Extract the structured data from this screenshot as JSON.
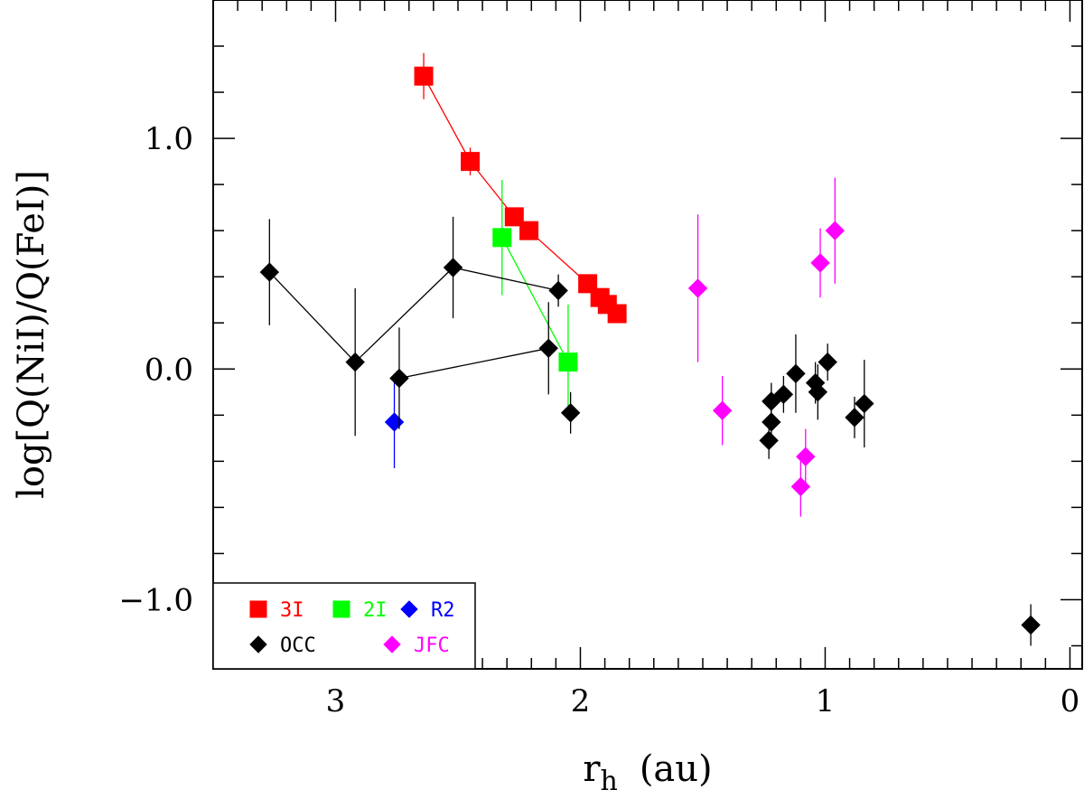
{
  "chart_data": {
    "type": "scatter",
    "xlabel": "r",
    "xlabel_sub": "h",
    "xlabel_unit": "(au)",
    "ylabel": "log[Q(NiI)/Q(FeI)]",
    "xlim": [
      3.5,
      -0.05
    ],
    "ylim": [
      -1.3,
      1.6
    ],
    "x_ticks": [
      3,
      2,
      1,
      0
    ],
    "x_tick_labels": [
      "3",
      "2",
      "1",
      "0"
    ],
    "y_ticks": [
      1.0,
      0.0,
      -1.0
    ],
    "y_tick_labels": [
      "1.0",
      "0.0",
      "−1.0"
    ],
    "legend_position": "bottom-left",
    "series": [
      {
        "name": "3I",
        "color": "#ff0000",
        "marker": "square",
        "connected": true,
        "points": [
          {
            "x": 2.64,
            "y": 1.27,
            "err": 0.1
          },
          {
            "x": 2.45,
            "y": 0.9,
            "err": 0.06
          },
          {
            "x": 2.27,
            "y": 0.66,
            "err": 0.04
          },
          {
            "x": 2.21,
            "y": 0.6,
            "err": 0.04
          },
          {
            "x": 1.97,
            "y": 0.37,
            "err": 0.04
          },
          {
            "x": 1.92,
            "y": 0.31,
            "err": 0.04
          },
          {
            "x": 1.89,
            "y": 0.28,
            "err": 0.04
          },
          {
            "x": 1.85,
            "y": 0.24,
            "err": 0.04
          }
        ]
      },
      {
        "name": "2I",
        "color": "#00ff00",
        "marker": "square",
        "connected": true,
        "points": [
          {
            "x": 2.32,
            "y": 0.57,
            "err": 0.25
          },
          {
            "x": 2.05,
            "y": 0.03,
            "err": 0.25
          }
        ]
      },
      {
        "name": "R2",
        "color": "#0000ff",
        "marker": "diamond",
        "connected": false,
        "points": [
          {
            "x": 2.76,
            "y": -0.23,
            "err": 0.2
          }
        ]
      },
      {
        "name": "OCC",
        "color": "#000000",
        "marker": "diamond",
        "connected": false,
        "lines": [
          [
            0,
            1,
            2,
            3
          ],
          [
            4,
            5
          ]
        ],
        "points": [
          {
            "x": 3.27,
            "y": 0.42,
            "err": 0.23
          },
          {
            "x": 2.92,
            "y": 0.03,
            "err": 0.32
          },
          {
            "x": 2.52,
            "y": 0.44,
            "err": 0.22
          },
          {
            "x": 2.09,
            "y": 0.34,
            "err": 0.07
          },
          {
            "x": 2.74,
            "y": -0.04,
            "err": 0.22
          },
          {
            "x": 2.13,
            "y": 0.09,
            "err": 0.2
          },
          {
            "x": 2.04,
            "y": -0.19,
            "err": 0.09
          },
          {
            "x": 1.23,
            "y": -0.31,
            "err": 0.08
          },
          {
            "x": 1.22,
            "y": -0.23,
            "err": 0.08
          },
          {
            "x": 1.22,
            "y": -0.14,
            "err": 0.08
          },
          {
            "x": 1.17,
            "y": -0.11,
            "err": 0.08
          },
          {
            "x": 1.12,
            "y": -0.02,
            "err": 0.17
          },
          {
            "x": 1.04,
            "y": -0.06,
            "err": 0.09
          },
          {
            "x": 1.03,
            "y": -0.1,
            "err": 0.12
          },
          {
            "x": 0.99,
            "y": 0.03,
            "err": 0.08
          },
          {
            "x": 0.88,
            "y": -0.21,
            "err": 0.09
          },
          {
            "x": 0.84,
            "y": -0.15,
            "err": 0.19
          },
          {
            "x": 0.16,
            "y": -1.11,
            "err": 0.09
          }
        ]
      },
      {
        "name": "JFC",
        "color": "#ff00ff",
        "marker": "diamond",
        "connected": false,
        "points": [
          {
            "x": 1.52,
            "y": 0.35,
            "err": 0.32
          },
          {
            "x": 1.42,
            "y": -0.18,
            "err": 0.15
          },
          {
            "x": 1.02,
            "y": 0.46,
            "err": 0.15
          },
          {
            "x": 0.96,
            "y": 0.6,
            "err": 0.23
          },
          {
            "x": 1.08,
            "y": -0.38,
            "err": 0.12
          },
          {
            "x": 1.1,
            "y": -0.51,
            "err": 0.13
          }
        ]
      }
    ]
  }
}
